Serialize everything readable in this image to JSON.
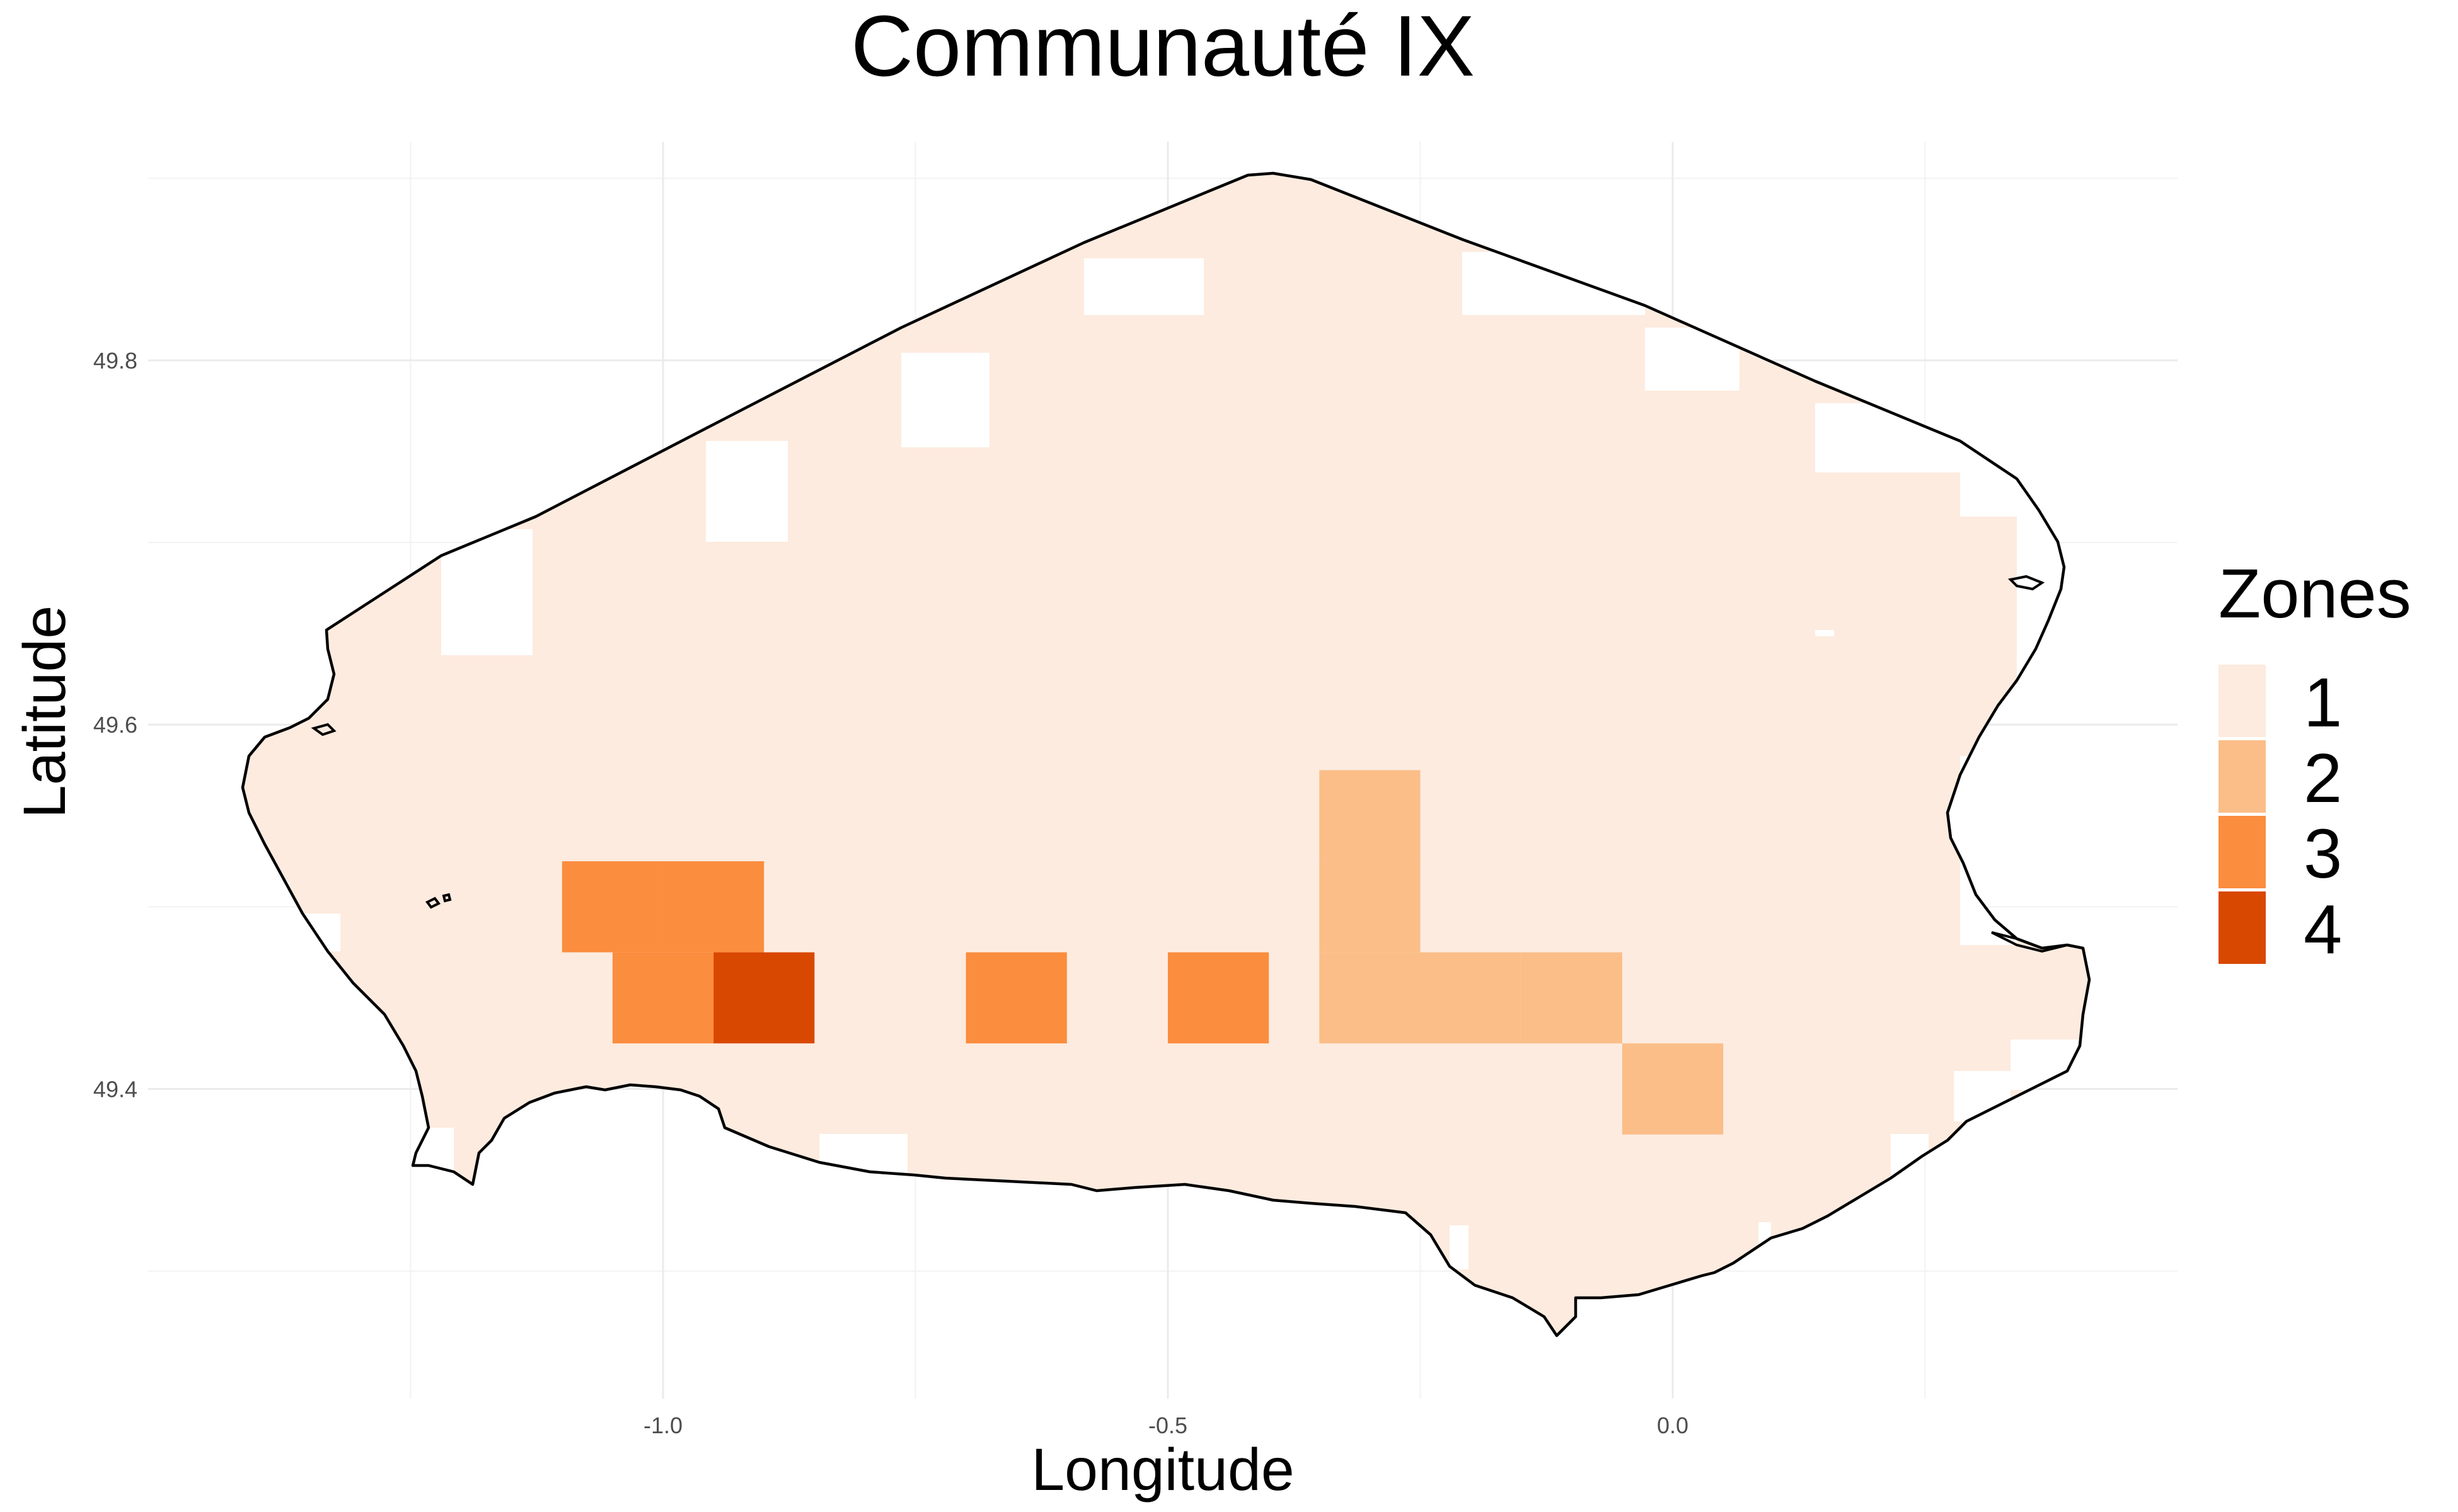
{
  "chart_data": {
    "type": "map",
    "title": "Communauté IX",
    "xlabel": "Longitude",
    "ylabel": "Latitude",
    "x_ticks": [
      "-1.0",
      "-0.5",
      "0.0"
    ],
    "y_ticks": [
      "49.8",
      "49.6",
      "49.4"
    ],
    "xlim": [
      -1.51,
      0.5
    ],
    "ylim": [
      49.23,
      49.92
    ],
    "cell_size": [
      0.1,
      0.05
    ],
    "legend": {
      "title": "Zones",
      "position": "right",
      "entries": [
        {
          "label": "1",
          "color": "#FDEBDF"
        },
        {
          "label": "2",
          "color": "#FBBE88"
        },
        {
          "label": "3",
          "color": "#FB8D3E"
        },
        {
          "label": "4",
          "color": "#D94801"
        }
      ]
    },
    "base_zone": "1",
    "zone_cells": [
      {
        "lon": -1.05,
        "lat": 49.5,
        "zone": "3"
      },
      {
        "lon": -0.95,
        "lat": 49.5,
        "zone": "3"
      },
      {
        "lon": -1.0,
        "lat": 49.45,
        "zone": "3"
      },
      {
        "lon": -0.9,
        "lat": 49.45,
        "zone": "4"
      },
      {
        "lon": -0.65,
        "lat": 49.45,
        "zone": "3"
      },
      {
        "lon": -0.45,
        "lat": 49.45,
        "zone": "3"
      },
      {
        "lon": -0.3,
        "lat": 49.55,
        "zone": "2"
      },
      {
        "lon": -0.3,
        "lat": 49.5,
        "zone": "2"
      },
      {
        "lon": -0.3,
        "lat": 49.45,
        "zone": "2"
      },
      {
        "lon": -0.2,
        "lat": 49.45,
        "zone": "2"
      },
      {
        "lon": -0.1,
        "lat": 49.45,
        "zone": "2"
      },
      {
        "lon": 0.0,
        "lat": 49.4,
        "zone": "2"
      }
    ],
    "grid": true
  }
}
